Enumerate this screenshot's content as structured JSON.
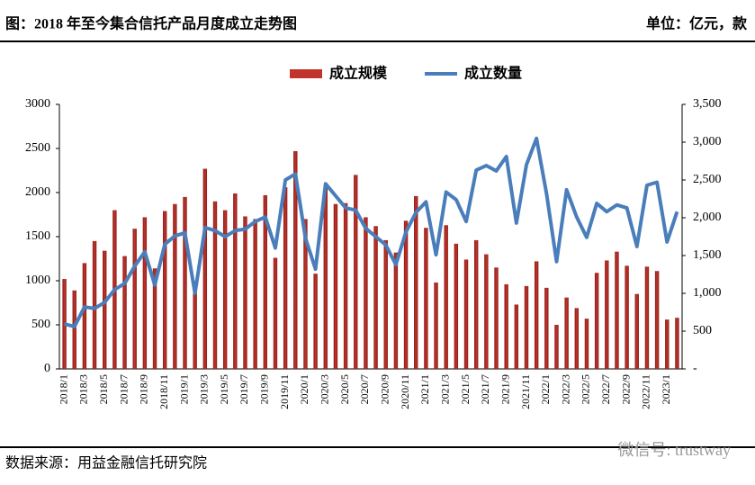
{
  "header": {
    "title": "图：2018 年至今集合信托产品月度成立走势图",
    "unit": "单位：亿元，款"
  },
  "footer": {
    "source": "数据来源：用益金融信托研究院",
    "watermark": "微信号: trustway"
  },
  "chart_data": {
    "type": "bar-line",
    "categories": [
      "2018/1",
      null,
      "2018/3",
      null,
      "2018/5",
      null,
      "2018/7",
      null,
      "2018/9",
      null,
      "2018/11",
      null,
      "2019/1",
      null,
      "2019/3",
      null,
      "2019/5",
      null,
      "2019/7",
      null,
      "2019/9",
      null,
      "2019/11",
      null,
      "2020/1",
      null,
      "2020/3",
      null,
      "2020/5",
      null,
      "2020/7",
      null,
      "2020/9",
      null,
      "2020/11",
      null,
      "2021/1",
      null,
      "2021/3",
      null,
      "2021/5",
      null,
      "2021/7",
      null,
      "2021/9",
      null,
      "2021/11",
      null,
      "2022/1",
      null,
      "2022/3",
      null,
      "2022/5",
      null,
      "2022/7",
      null,
      "2022/9",
      null,
      "2022/11",
      null,
      "2023/1",
      null
    ],
    "series": [
      {
        "name": "成立规模",
        "color": "#c0342c",
        "type": "bar",
        "axis": "y",
        "values": [
          1020,
          890,
          1200,
          1450,
          1340,
          1800,
          1280,
          1590,
          1720,
          1140,
          1790,
          1870,
          1950,
          1000,
          2270,
          1900,
          1800,
          1990,
          1730,
          1700,
          1970,
          1260,
          2060,
          2470,
          1700,
          1080,
          2070,
          1870,
          1880,
          2200,
          1720,
          1620,
          1460,
          1320,
          1680,
          1960,
          1600,
          980,
          1630,
          1420,
          1240,
          1460,
          1300,
          1150,
          960,
          730,
          940,
          1220,
          920,
          500,
          810,
          690,
          570,
          1090,
          1230,
          1330,
          1170,
          850,
          1160,
          1110,
          560,
          580
        ]
      },
      {
        "name": "成立数量",
        "color": "#4a7ebb",
        "type": "line",
        "axis": "y2",
        "values": [
          595,
          560,
          820,
          800,
          880,
          1050,
          1130,
          1360,
          1550,
          1110,
          1650,
          1760,
          1800,
          1000,
          1870,
          1830,
          1750,
          1830,
          1850,
          1950,
          2010,
          1600,
          2500,
          2580,
          1730,
          1320,
          2450,
          2290,
          2130,
          2100,
          1860,
          1750,
          1640,
          1380,
          1810,
          2070,
          2210,
          1510,
          2340,
          2240,
          1950,
          2630,
          2690,
          2620,
          2810,
          1930,
          2700,
          3050,
          2320,
          1420,
          2370,
          2010,
          1740,
          2190,
          2080,
          2170,
          2130,
          1620,
          2430,
          2470,
          1680,
          2080
        ]
      }
    ],
    "ylim": [
      0,
      3000
    ],
    "yticks": [
      0,
      500,
      1000,
      1500,
      2000,
      2500,
      3000
    ],
    "y2lim": [
      0,
      3500
    ],
    "y2ticks": [
      {
        "value": 0,
        "label": "-"
      },
      500,
      {
        "value": 1000,
        "label": "1,000"
      },
      {
        "value": 1500,
        "label": "1,500"
      },
      {
        "value": 2000,
        "label": "2,000"
      },
      {
        "value": 2500,
        "label": "2,500"
      },
      {
        "value": 3000,
        "label": "3,000"
      },
      {
        "value": 3500,
        "label": "3,500"
      }
    ],
    "legend": "top"
  }
}
